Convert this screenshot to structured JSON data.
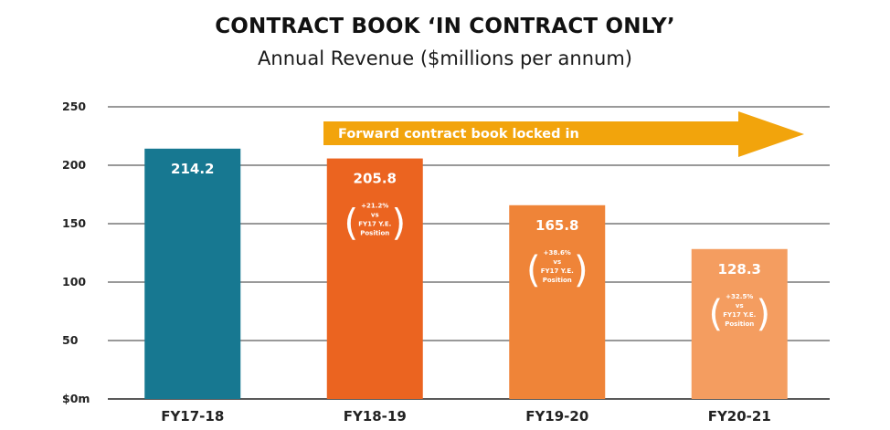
{
  "chart_data": {
    "type": "bar",
    "title": "CONTRACT BOOK ‘IN CONTRACT ONLY’",
    "subtitle": "Annual Revenue ($millions per annum)",
    "categories": [
      "FY17-18",
      "FY18-19",
      "FY19-20",
      "FY20-21"
    ],
    "values": [
      214.2,
      205.8,
      165.8,
      128.3
    ],
    "value_labels": [
      "214.2",
      "205.8",
      "165.8",
      "128.3"
    ],
    "bar_colors": [
      "#177891",
      "#EB6420",
      "#EF8438",
      "#F49D60"
    ],
    "notes": [
      null,
      [
        "+21.2%",
        "vs",
        "FY17 Y.E.",
        "Position"
      ],
      [
        "+38.6%",
        "vs",
        "FY17 Y.E.",
        "Position"
      ],
      [
        "+32.5%",
        "vs",
        "FY17 Y.E.",
        "Position"
      ]
    ],
    "yticks": [
      0,
      50,
      100,
      150,
      200,
      250
    ],
    "ytick_labels": [
      "$0m",
      "50",
      "100",
      "150",
      "200",
      "250"
    ],
    "ylim": [
      0,
      250
    ],
    "grid": true,
    "xlabel": "",
    "ylabel": "",
    "annotation": {
      "text": "Forward contract book locked in",
      "color": "#F2A40C"
    }
  }
}
